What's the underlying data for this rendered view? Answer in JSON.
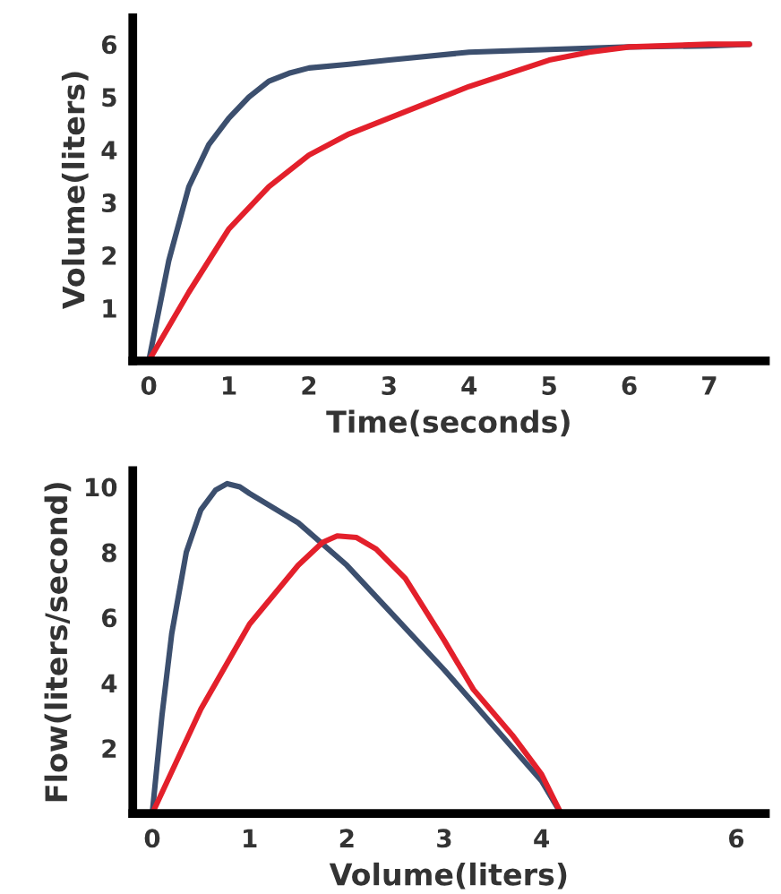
{
  "chart_data": [
    {
      "type": "line",
      "xlabel": "Time(seconds)",
      "ylabel": "Volume(liters)",
      "xlim": [
        -0.2,
        7.7
      ],
      "ylim": [
        0,
        6.5
      ],
      "xticks": [
        0,
        1,
        2,
        3,
        4,
        5,
        6,
        7
      ],
      "yticks": [
        1,
        2,
        3,
        4,
        5,
        6
      ],
      "grid": false,
      "legend": false,
      "series": [
        {
          "color": "#3c4f6e",
          "x": [
            0,
            0.25,
            0.5,
            0.75,
            1,
            1.25,
            1.5,
            1.75,
            2,
            2.5,
            3,
            4,
            5,
            6,
            7,
            7.5
          ],
          "values": [
            0,
            1.9,
            3.3,
            4.1,
            4.6,
            5.0,
            5.3,
            5.45,
            5.55,
            5.62,
            5.7,
            5.85,
            5.9,
            5.95,
            5.97,
            6.0
          ]
        },
        {
          "color": "#e3202b",
          "x": [
            0,
            0.5,
            1,
            1.5,
            2,
            2.5,
            3,
            3.5,
            4,
            4.5,
            5,
            5.5,
            6,
            7,
            7.5
          ],
          "values": [
            0,
            1.3,
            2.5,
            3.3,
            3.9,
            4.3,
            4.6,
            4.9,
            5.2,
            5.45,
            5.7,
            5.85,
            5.95,
            6.0,
            6.0
          ]
        }
      ]
    },
    {
      "type": "line",
      "xlabel": "Volume(liters)",
      "ylabel": "Flow(liters/second)",
      "xlim": [
        -0.2,
        6.3
      ],
      "ylim": [
        0,
        10.5
      ],
      "xticks": [
        0,
        1,
        2,
        3,
        4,
        6
      ],
      "yticks": [
        2,
        4,
        6,
        8,
        10
      ],
      "grid": false,
      "legend": false,
      "series": [
        {
          "color": "#3c4f6e",
          "x": [
            0,
            0.1,
            0.2,
            0.35,
            0.5,
            0.65,
            0.77,
            0.9,
            1,
            1.5,
            2,
            2.5,
            3,
            3.5,
            4,
            4.2
          ],
          "values": [
            0,
            3,
            5.5,
            8,
            9.3,
            9.9,
            10.1,
            10.0,
            9.8,
            8.9,
            7.6,
            6.0,
            4.4,
            2.7,
            1.0,
            0
          ]
        },
        {
          "color": "#e3202b",
          "x": [
            0,
            0.5,
            1,
            1.5,
            1.75,
            1.9,
            2.1,
            2.3,
            2.6,
            3,
            3.3,
            3.7,
            4,
            4.2
          ],
          "values": [
            0,
            3.2,
            5.8,
            7.6,
            8.3,
            8.5,
            8.45,
            8.1,
            7.2,
            5.3,
            3.8,
            2.4,
            1.2,
            0
          ]
        }
      ]
    }
  ]
}
